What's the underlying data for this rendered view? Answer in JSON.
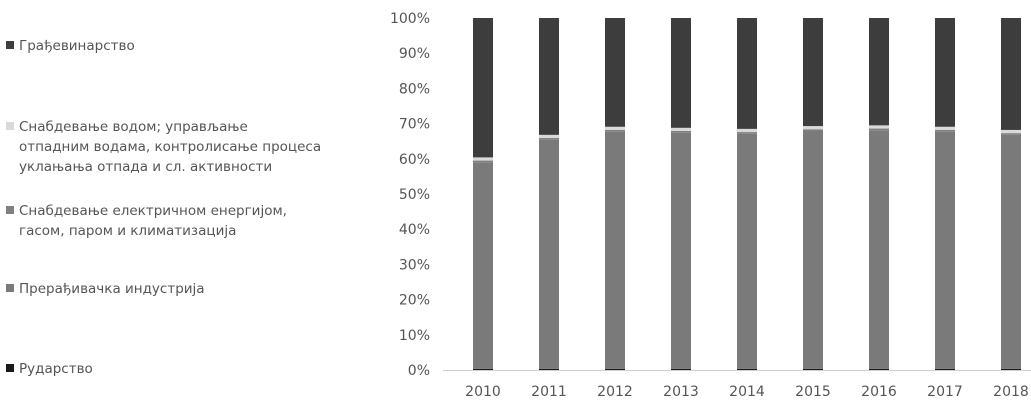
{
  "chart_data": {
    "type": "bar",
    "stacked": true,
    "percent": true,
    "categories": [
      "2010",
      "2011",
      "2012",
      "2013",
      "2014",
      "2015",
      "2016",
      "2017",
      "2018"
    ],
    "series": [
      {
        "name": "Рударство",
        "color": "#1a1a1a",
        "values": [
          0.3,
          0.3,
          0.3,
          0.3,
          0.3,
          0.3,
          0.3,
          0.3,
          0.3
        ]
      },
      {
        "name": "Прерађивачка индустрија",
        "color": "#7a7a7a",
        "values": [
          58.7,
          65.1,
          67.4,
          67.1,
          66.8,
          67.6,
          67.8,
          67.4,
          66.5
        ]
      },
      {
        "name": "Снабдевање електричном енергијом,\nгасом, паром и климатизација",
        "color": "#808080",
        "values": [
          0.5,
          0.5,
          0.5,
          0.5,
          0.5,
          0.5,
          0.5,
          0.5,
          0.5
        ]
      },
      {
        "name": "Снабдевање водом; управљање\nотпадним водама, контролисање процеса\nуклањања отпада и сл. активности",
        "color": "#d9d9d9",
        "values": [
          0.9,
          0.9,
          0.9,
          0.9,
          0.9,
          0.9,
          0.9,
          0.9,
          0.9
        ]
      },
      {
        "name": "Грађевинарство",
        "color": "#3d3d3d",
        "values": [
          39.6,
          33.2,
          30.9,
          31.2,
          31.5,
          30.7,
          30.5,
          30.9,
          31.8
        ]
      }
    ],
    "y_ticks": [
      "0%",
      "10%",
      "20%",
      "30%",
      "40%",
      "50%",
      "60%",
      "70%",
      "80%",
      "90%",
      "100%"
    ],
    "ylim": [
      0,
      100
    ],
    "grid": false,
    "legend_position": "left"
  },
  "legend": {
    "items": [
      {
        "label": "Грађевинарство",
        "color": "#3d3d3d"
      },
      {
        "label": "Снабдевање водом; управљање\nотпадним водама, контролисање процеса\nуклањања отпада и сл. активности",
        "color": "#d9d9d9"
      },
      {
        "label": "Снабдевање електричном енергијом,\nгасом, паром и климатизација",
        "color": "#808080"
      },
      {
        "label": "Прерађивачка индустрија",
        "color": "#7a7a7a"
      },
      {
        "label": "Рударство",
        "color": "#1a1a1a"
      }
    ]
  }
}
